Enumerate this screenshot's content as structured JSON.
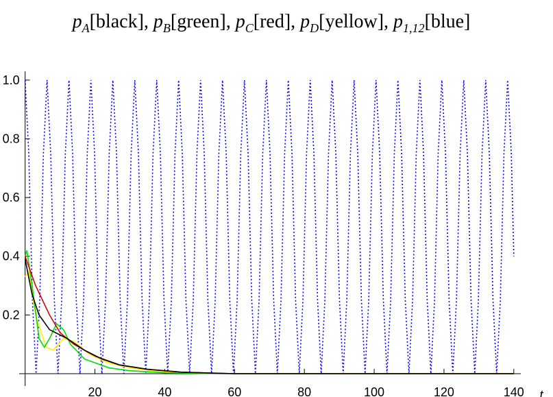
{
  "chart_data": {
    "type": "line",
    "title_parts": [
      {
        "base": "p",
        "sub": "A",
        "label": "[black], "
      },
      {
        "base": "p",
        "sub": "B",
        "label": "[green], "
      },
      {
        "base": "p",
        "sub": "C",
        "label": "[red], "
      },
      {
        "base": "p",
        "sub": "D",
        "label": "[yellow], "
      },
      {
        "base": "p",
        "sub": "1,12",
        "label": "[blue]"
      }
    ],
    "x_label": "t",
    "xlim": [
      -1.7,
      142
    ],
    "ylim": [
      0,
      1.03
    ],
    "xticks": [
      20,
      40,
      60,
      80,
      100,
      120,
      140
    ],
    "yticks": [
      0.2,
      0.4,
      0.6,
      0.8,
      {
        "value": 1,
        "label": "1.0"
      }
    ],
    "series": [
      {
        "color": "#0000ff",
        "dashed": true,
        "x": [
          0,
          1.05,
          2.09,
          3.14,
          4.19,
          5.24,
          6.28,
          7.33,
          8.38,
          9.42,
          10.47,
          11.52,
          12.57,
          13.61,
          14.66,
          15.71,
          16.76,
          17.8,
          18.85,
          19.9,
          20.94,
          21.99,
          23.04,
          24.09,
          25.13,
          26.18,
          27.23,
          28.27,
          29.32,
          30.37,
          31.42,
          32.46,
          33.51,
          34.56,
          35.6,
          36.65,
          37.7,
          38.75,
          39.79,
          40.84,
          41.89,
          42.94,
          43.98,
          45.03,
          46.08,
          47.12,
          48.17,
          49.22,
          50.27,
          51.31,
          52.36,
          53.41,
          54.45,
          55.5,
          56.55,
          57.6,
          58.64,
          59.69,
          60.74,
          61.78,
          62.83,
          63.88,
          64.93,
          65.97,
          67.02,
          68.07,
          69.12,
          70.16,
          71.21,
          72.26,
          73.3,
          74.35,
          75.4,
          76.45,
          77.49,
          78.54,
          79.59,
          80.63,
          81.68,
          82.73,
          83.78,
          84.82,
          85.87,
          86.92,
          87.96,
          89.01,
          90.06,
          91.11,
          92.15,
          93.2,
          94.25,
          95.3,
          96.34,
          97.39,
          98.44,
          99.48,
          100.53,
          101.58,
          102.63,
          103.67,
          104.72,
          105.77,
          106.81,
          107.86,
          108.91,
          109.96,
          111,
          112.05,
          113.1,
          114.14,
          115.19,
          116.24,
          117.29,
          118.33,
          119.38,
          120.43,
          121.47,
          122.52,
          123.57,
          124.62,
          125.66,
          126.71,
          127.76,
          128.81,
          129.85,
          130.9,
          131.95,
          132.99,
          134.04,
          135.09,
          136.14,
          137.18,
          138.23,
          139.28,
          140
        ],
        "values": [
          1,
          0.75,
          0.25,
          0,
          0.25,
          0.75,
          1,
          0.75,
          0.25,
          0,
          0.25,
          0.75,
          1,
          0.75,
          0.25,
          0,
          0.25,
          0.75,
          1,
          0.75,
          0.25,
          0,
          0.25,
          0.75,
          1,
          0.75,
          0.25,
          0,
          0.25,
          0.75,
          1,
          0.75,
          0.25,
          0,
          0.25,
          0.75,
          1,
          0.75,
          0.25,
          0,
          0.25,
          0.75,
          1,
          0.75,
          0.25,
          0,
          0.25,
          0.75,
          1,
          0.75,
          0.25,
          0,
          0.25,
          0.75,
          1,
          0.75,
          0.25,
          0,
          0.25,
          0.75,
          1,
          0.75,
          0.25,
          0,
          0.25,
          0.75,
          1,
          0.75,
          0.25,
          0,
          0.25,
          0.75,
          1,
          0.75,
          0.25,
          0,
          0.25,
          0.75,
          1,
          0.75,
          0.25,
          0,
          0.25,
          0.75,
          1,
          0.75,
          0.25,
          0,
          0.25,
          0.75,
          1,
          0.75,
          0.25,
          0,
          0.25,
          0.75,
          1,
          0.75,
          0.25,
          0,
          0.25,
          0.75,
          1,
          0.75,
          0.25,
          0,
          0.25,
          0.75,
          1,
          0.75,
          0.25,
          0,
          0.25,
          0.75,
          1,
          0.75,
          0.25,
          0,
          0.25,
          0.75,
          1,
          0.75,
          0.25,
          0,
          0.25,
          0.75,
          1,
          0.75,
          0.25,
          0,
          0.25,
          0.75,
          1,
          0.75,
          0.4
        ]
      },
      {
        "color": "#ffee00",
        "x": [
          0,
          1,
          3,
          6,
          8,
          11,
          14,
          18,
          23,
          30,
          40,
          55,
          140
        ],
        "values": [
          0.33,
          0.35,
          0.2,
          0.09,
          0.08,
          0.12,
          0.11,
          0.07,
          0.04,
          0.02,
          0.005,
          0,
          0
        ]
      },
      {
        "color": "#00dd00",
        "x": [
          0,
          0.5,
          2,
          4,
          5.5,
          7,
          9,
          11,
          13,
          17,
          24,
          30,
          40,
          55,
          140
        ],
        "values": [
          0.4,
          0.42,
          0.3,
          0.12,
          0.09,
          0.12,
          0.17,
          0.15,
          0.1,
          0.05,
          0.02,
          0.01,
          0.003,
          0,
          0
        ]
      },
      {
        "color": "#dd0000",
        "x": [
          0,
          3,
          7,
          10,
          14,
          20,
          27,
          35,
          45,
          60,
          140
        ],
        "values": [
          0.4,
          0.3,
          0.2,
          0.14,
          0.1,
          0.06,
          0.03,
          0.015,
          0.005,
          0,
          0
        ]
      },
      {
        "color": "#000000",
        "x": [
          0,
          2,
          4,
          7,
          12,
          17,
          22,
          27,
          35,
          45,
          60,
          140
        ],
        "values": [
          0.39,
          0.27,
          0.2,
          0.15,
          0.12,
          0.08,
          0.05,
          0.03,
          0.015,
          0.005,
          0,
          0
        ]
      }
    ]
  }
}
